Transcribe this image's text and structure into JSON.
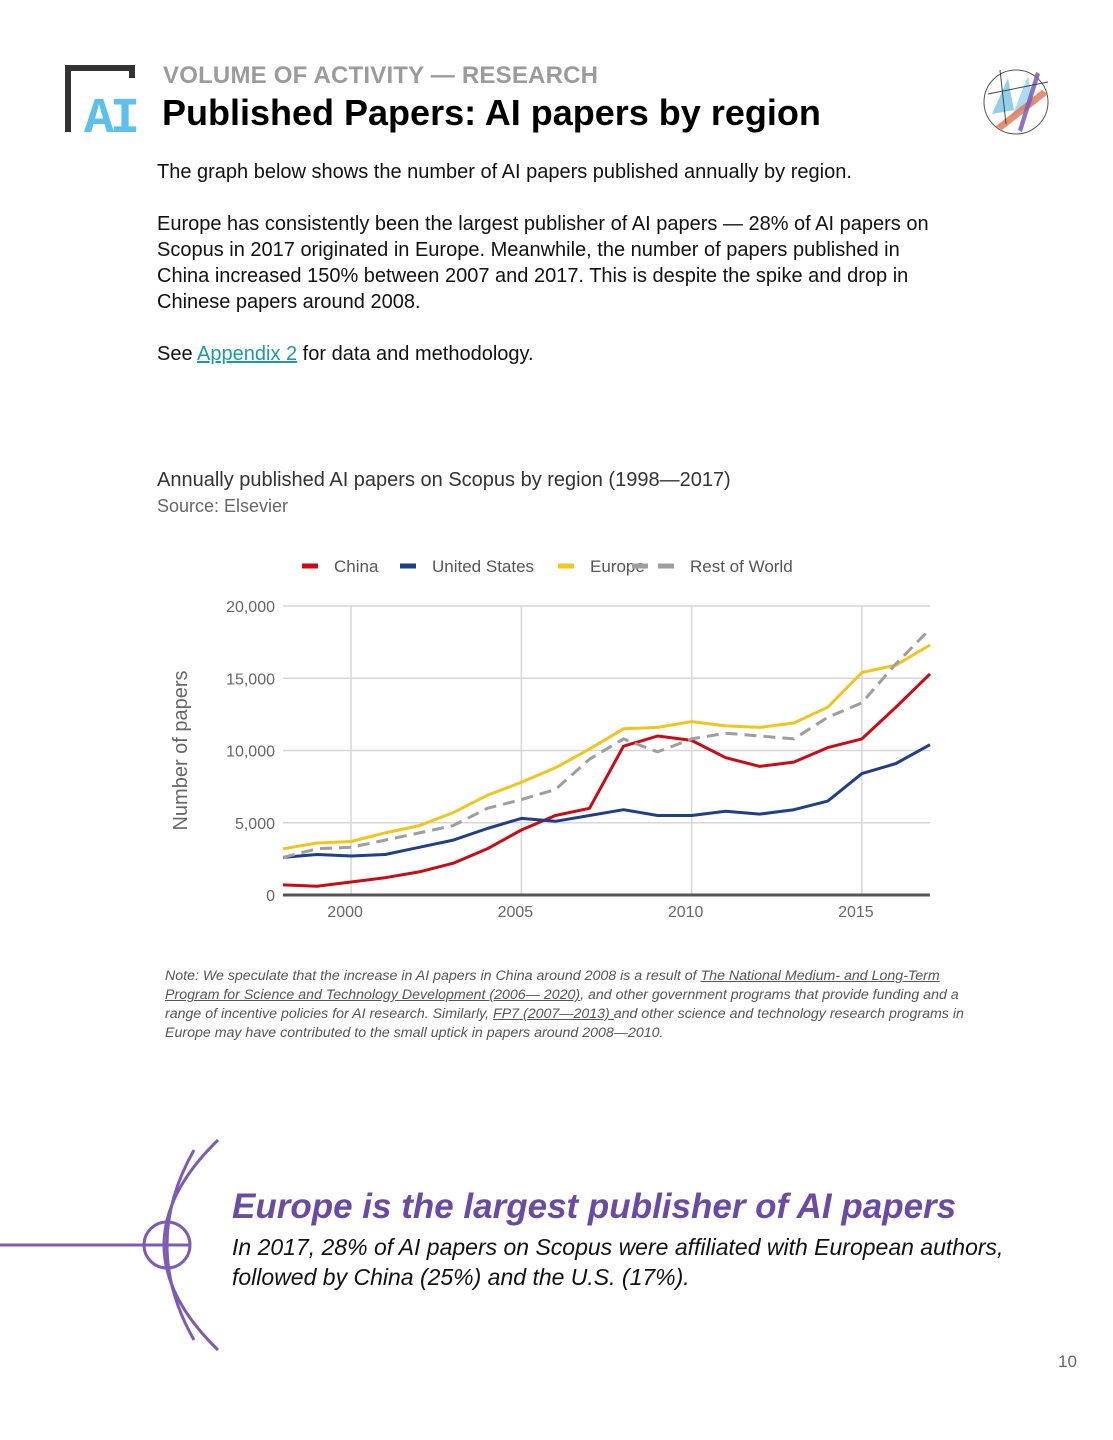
{
  "header": {
    "section_label": "VOLUME OF ACTIVITY — RESEARCH",
    "title": "Published Papers: AI papers by region",
    "logo_text": "AI"
  },
  "body": {
    "p1": "The graph below shows the number of AI papers published annually by region.",
    "p2": "Europe has consistently been the largest publisher of AI papers — 28% of AI papers on Scopus in 2017 originated in Europe. Meanwhile, the number of papers published in China increased 150% between 2007 and 2017. This is despite the spike and drop in Chinese papers around 2008.",
    "p3_pre": "See ",
    "p3_link": "Appendix 2",
    "p3_post": " for data and methodology."
  },
  "chart_title": "Annually published AI papers on Scopus by region (1998—2017)",
  "chart_source": "Source: Elsevier",
  "chart_data": {
    "type": "line",
    "x": [
      1998,
      1999,
      2000,
      2001,
      2002,
      2003,
      2004,
      2005,
      2006,
      2007,
      2008,
      2009,
      2010,
      2011,
      2012,
      2013,
      2014,
      2015,
      2016,
      2017
    ],
    "series": [
      {
        "name": "China",
        "color": "#cc0a12",
        "dashed": false,
        "values": [
          700,
          600,
          900,
          1200,
          1600,
          2200,
          3200,
          4500,
          5500,
          6000,
          10300,
          11000,
          10700,
          9500,
          8900,
          9200,
          10200,
          10800,
          13000,
          15300
        ]
      },
      {
        "name": "United States",
        "color": "#1f3f8a",
        "dashed": false,
        "values": [
          2600,
          2800,
          2700,
          2800,
          3300,
          3800,
          4600,
          5300,
          5100,
          5500,
          5900,
          5500,
          5500,
          5800,
          5600,
          5900,
          6500,
          8400,
          9100,
          10400
        ]
      },
      {
        "name": "Europe",
        "color": "#f2c51c",
        "dashed": false,
        "values": [
          3200,
          3600,
          3700,
          4300,
          4800,
          5700,
          6900,
          7800,
          8800,
          10100,
          11500,
          11600,
          12000,
          11700,
          11600,
          11900,
          13000,
          15400,
          15900,
          17300
        ]
      },
      {
        "name": "Rest of World",
        "color": "#9e9e9e",
        "dashed": true,
        "values": [
          2600,
          3200,
          3300,
          3800,
          4300,
          4800,
          6000,
          6600,
          7300,
          9400,
          10800,
          9900,
          10800,
          11200,
          11000,
          10800,
          12300,
          13300,
          16000,
          18400
        ]
      }
    ],
    "ylabel": "Number of papers",
    "xlabel": "",
    "ylim": [
      0,
      20000
    ],
    "xlim": [
      1998,
      2017
    ],
    "y_ticks": [
      0,
      5000,
      10000,
      15000,
      20000
    ],
    "y_tick_labels": [
      "0",
      "5,000",
      "10,000",
      "15,000",
      "20,000"
    ],
    "x_ticks": [
      2000,
      2005,
      2010,
      2015
    ],
    "x_tick_labels": [
      "2000",
      "2005",
      "2010",
      "2015"
    ],
    "legend": "top",
    "grid": true
  },
  "note": {
    "pre": "Note: We speculate that the increase in AI papers in China around 2008 is a result of ",
    "link1": "The National Medium- and Long-Term Program for Science and Technology Development (2006— 2020)",
    "mid": ", and other government programs that provide funding and a range of incentive policies for AI research. Similarly, ",
    "link2": "FP7 (2007—2013) ",
    "post": "and other science and technology research programs in Europe may have contributed to the small uptick in papers around 2008—2010."
  },
  "callout": {
    "headline": "Europe is the largest publisher of AI papers",
    "body": "In 2017, 28% of AI papers on Scopus were affiliated with European authors, followed by China (25%) and the U.S. (17%)."
  },
  "page_number": "10",
  "colors": {
    "accent_purple": "#6a4aa5",
    "link_teal": "#1a9aa0",
    "logo_blue": "#5bc0eb"
  }
}
